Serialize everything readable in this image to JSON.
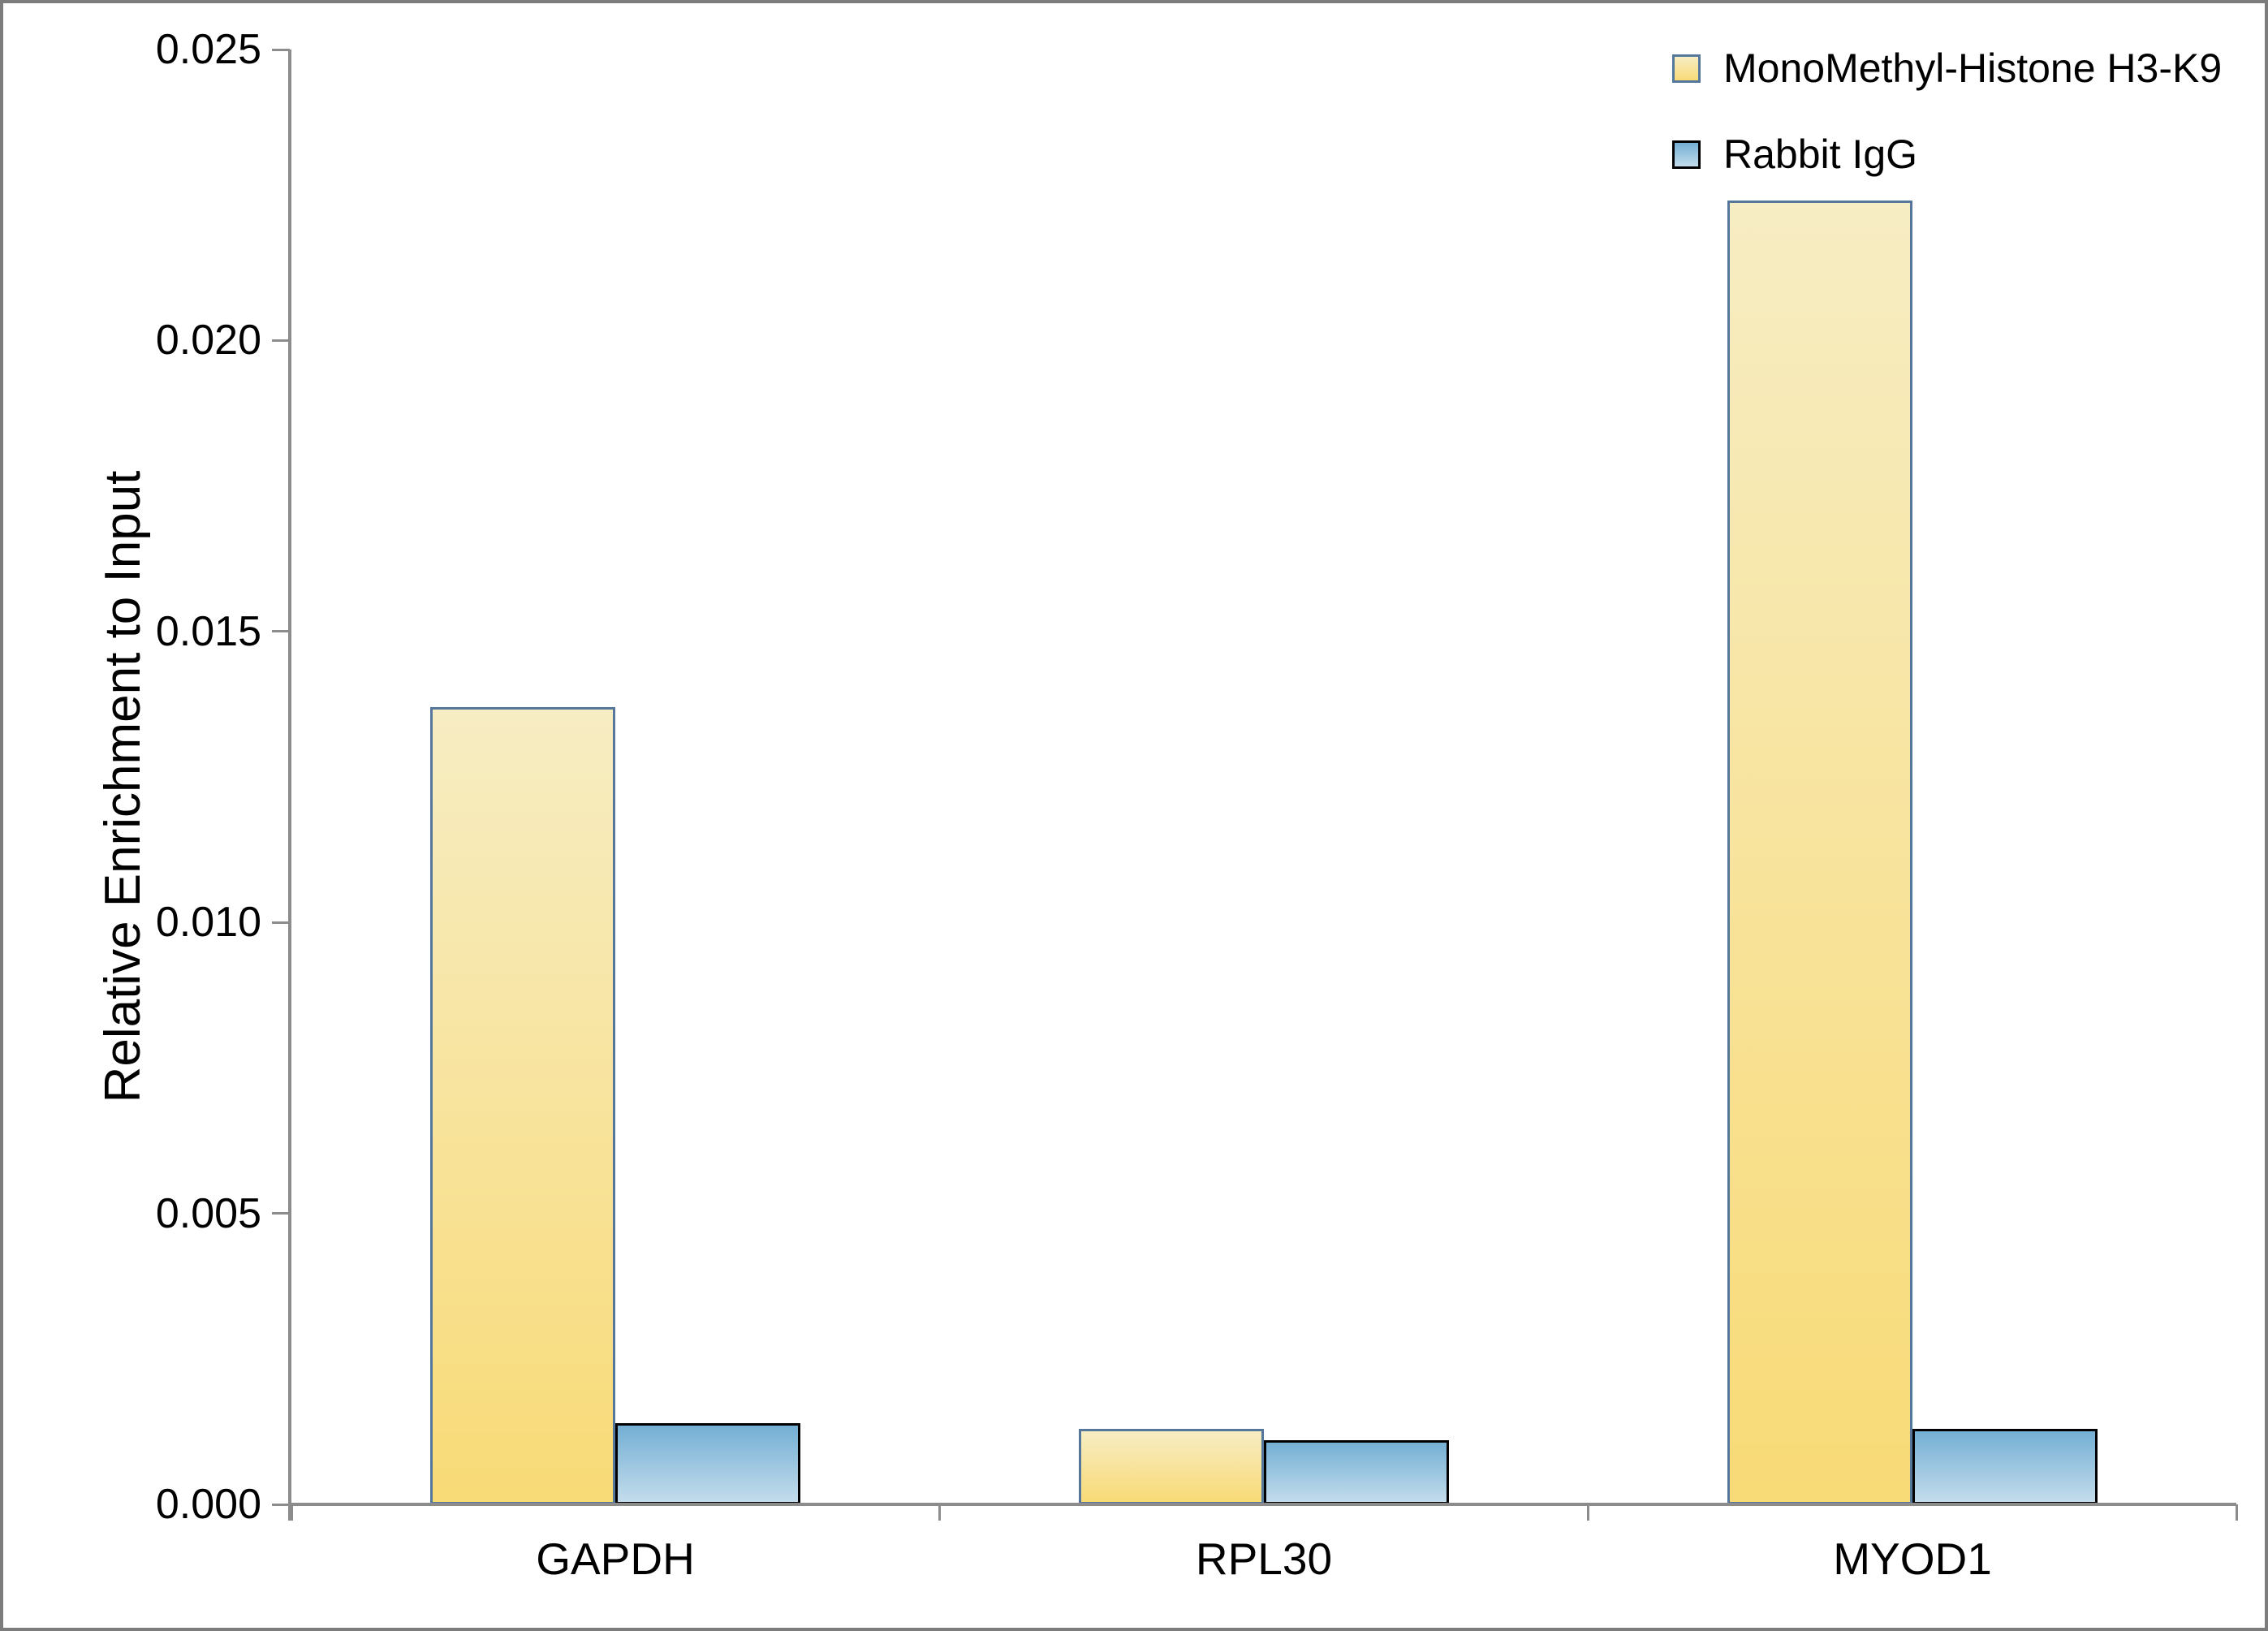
{
  "chart_data": {
    "type": "bar",
    "title": "",
    "xlabel": "",
    "ylabel": "Relative Enrichment to Input",
    "categories": [
      "GAPDH",
      "RPL30",
      "MYOD1"
    ],
    "series": [
      {
        "name": "MonoMethyl-Histone H3-K9",
        "values": [
          0.0137,
          0.0013,
          0.0224
        ],
        "fill_top": "#f7edc3",
        "fill_bottom": "#f8da76",
        "border_color": "#54779b"
      },
      {
        "name": "Rabbit IgG",
        "values": [
          0.0014,
          0.0011,
          0.0013
        ],
        "fill_top": "#74afd4",
        "fill_bottom": "#c3dcec",
        "border_color": "#000000"
      }
    ],
    "ylim": [
      0,
      0.025
    ],
    "ytick_step": 0.005,
    "ytick_labels": [
      "0.000",
      "0.005",
      "0.010",
      "0.015",
      "0.020",
      "0.025"
    ],
    "grid": false,
    "legend_position": "top-right",
    "axis_color": "#8c8c8c",
    "text_color": "#000000"
  }
}
